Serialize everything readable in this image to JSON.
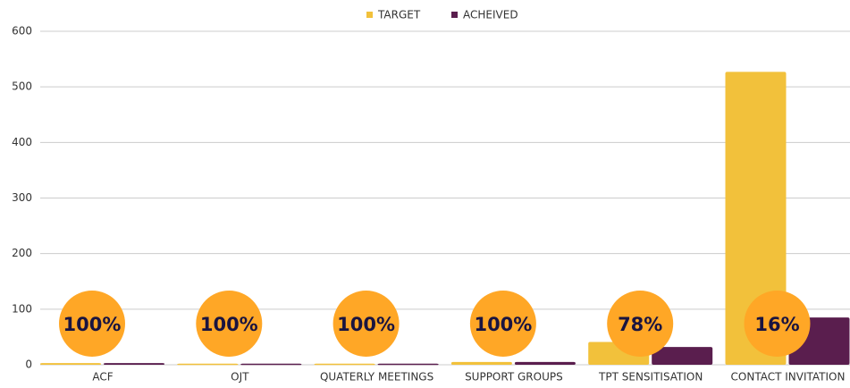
{
  "chart_data": {
    "type": "bar",
    "categories": [
      "ACF",
      "OJT",
      "QUATERLY MEETINGS",
      "SUPPORT GROUPS",
      "TPT SENSITISATION",
      "CONTACT INVITATION"
    ],
    "series": [
      {
        "name": "TARGET",
        "color": "#f2c13b",
        "values": [
          3,
          2,
          2,
          5,
          41,
          527
        ]
      },
      {
        "name": "ACHEIVED",
        "color": "#5a1e4e",
        "values": [
          3,
          2,
          2,
          5,
          32,
          85
        ]
      }
    ],
    "annotations": [
      "100%",
      "100%",
      "100%",
      "100%",
      "78%",
      "16%"
    ],
    "annotation_color": "#ffa726",
    "ylim": [
      0,
      600
    ],
    "yticks": [
      0,
      100,
      200,
      300,
      400,
      500,
      600
    ],
    "grid": true,
    "legend": "top"
  }
}
